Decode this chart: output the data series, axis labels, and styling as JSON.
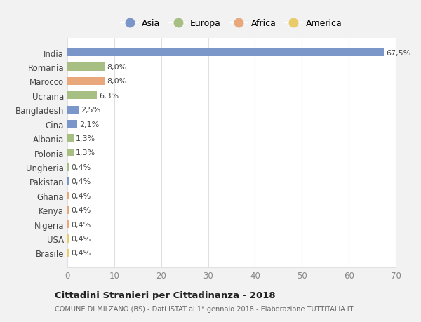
{
  "categories": [
    "India",
    "Romania",
    "Marocco",
    "Ucraina",
    "Bangladesh",
    "Cina",
    "Albania",
    "Polonia",
    "Ungheria",
    "Pakistan",
    "Ghana",
    "Kenya",
    "Nigeria",
    "USA",
    "Brasile"
  ],
  "values": [
    67.5,
    8.0,
    8.0,
    6.3,
    2.5,
    2.1,
    1.3,
    1.3,
    0.4,
    0.4,
    0.4,
    0.4,
    0.4,
    0.4,
    0.4
  ],
  "labels": [
    "67,5%",
    "8,0%",
    "8,0%",
    "6,3%",
    "2,5%",
    "2,1%",
    "1,3%",
    "1,3%",
    "0,4%",
    "0,4%",
    "0,4%",
    "0,4%",
    "0,4%",
    "0,4%",
    "0,4%"
  ],
  "continents": [
    "Asia",
    "Europa",
    "Africa",
    "Europa",
    "Asia",
    "Asia",
    "Europa",
    "Europa",
    "Europa",
    "Asia",
    "Africa",
    "Africa",
    "Africa",
    "America",
    "America"
  ],
  "continent_colors": {
    "Asia": "#7b96c8",
    "Europa": "#a8bf84",
    "Africa": "#e8a87c",
    "America": "#e8cc6a"
  },
  "legend_order": [
    "Asia",
    "Europa",
    "Africa",
    "America"
  ],
  "title": "Cittadini Stranieri per Cittadinanza - 2018",
  "subtitle": "COMUNE DI MILZANO (BS) - Dati ISTAT al 1° gennaio 2018 - Elaborazione TUTTITALIA.IT",
  "xlim": [
    0,
    70
  ],
  "xticks": [
    0,
    10,
    20,
    30,
    40,
    50,
    60,
    70
  ],
  "background_color": "#f2f2f2",
  "bar_background": "#ffffff",
  "grid_color": "#e0e0e0",
  "label_color": "#444444",
  "tick_color": "#888888"
}
